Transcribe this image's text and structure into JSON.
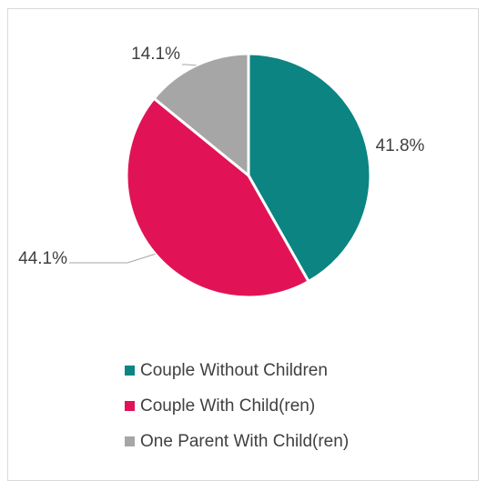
{
  "chart_data": {
    "type": "pie",
    "categories": [
      "Couple Without Children",
      "Couple With Child(ren)",
      "One Parent With Child(ren)"
    ],
    "values": [
      41.8,
      44.1,
      14.1
    ],
    "value_labels": [
      "41.8%",
      "44.1%",
      "14.1%"
    ],
    "colors": [
      "#0b8482",
      "#e11356",
      "#a6a6a6"
    ],
    "start_angle_deg": 0,
    "direction": "clockwise",
    "legend_position": "bottom",
    "legend": [
      {
        "label": "Couple Without Children",
        "color": "#0b8482"
      },
      {
        "label": "Couple With Child(ren)",
        "color": "#e11356"
      },
      {
        "label": "One Parent With Child(ren)",
        "color": "#a6a6a6"
      }
    ]
  }
}
